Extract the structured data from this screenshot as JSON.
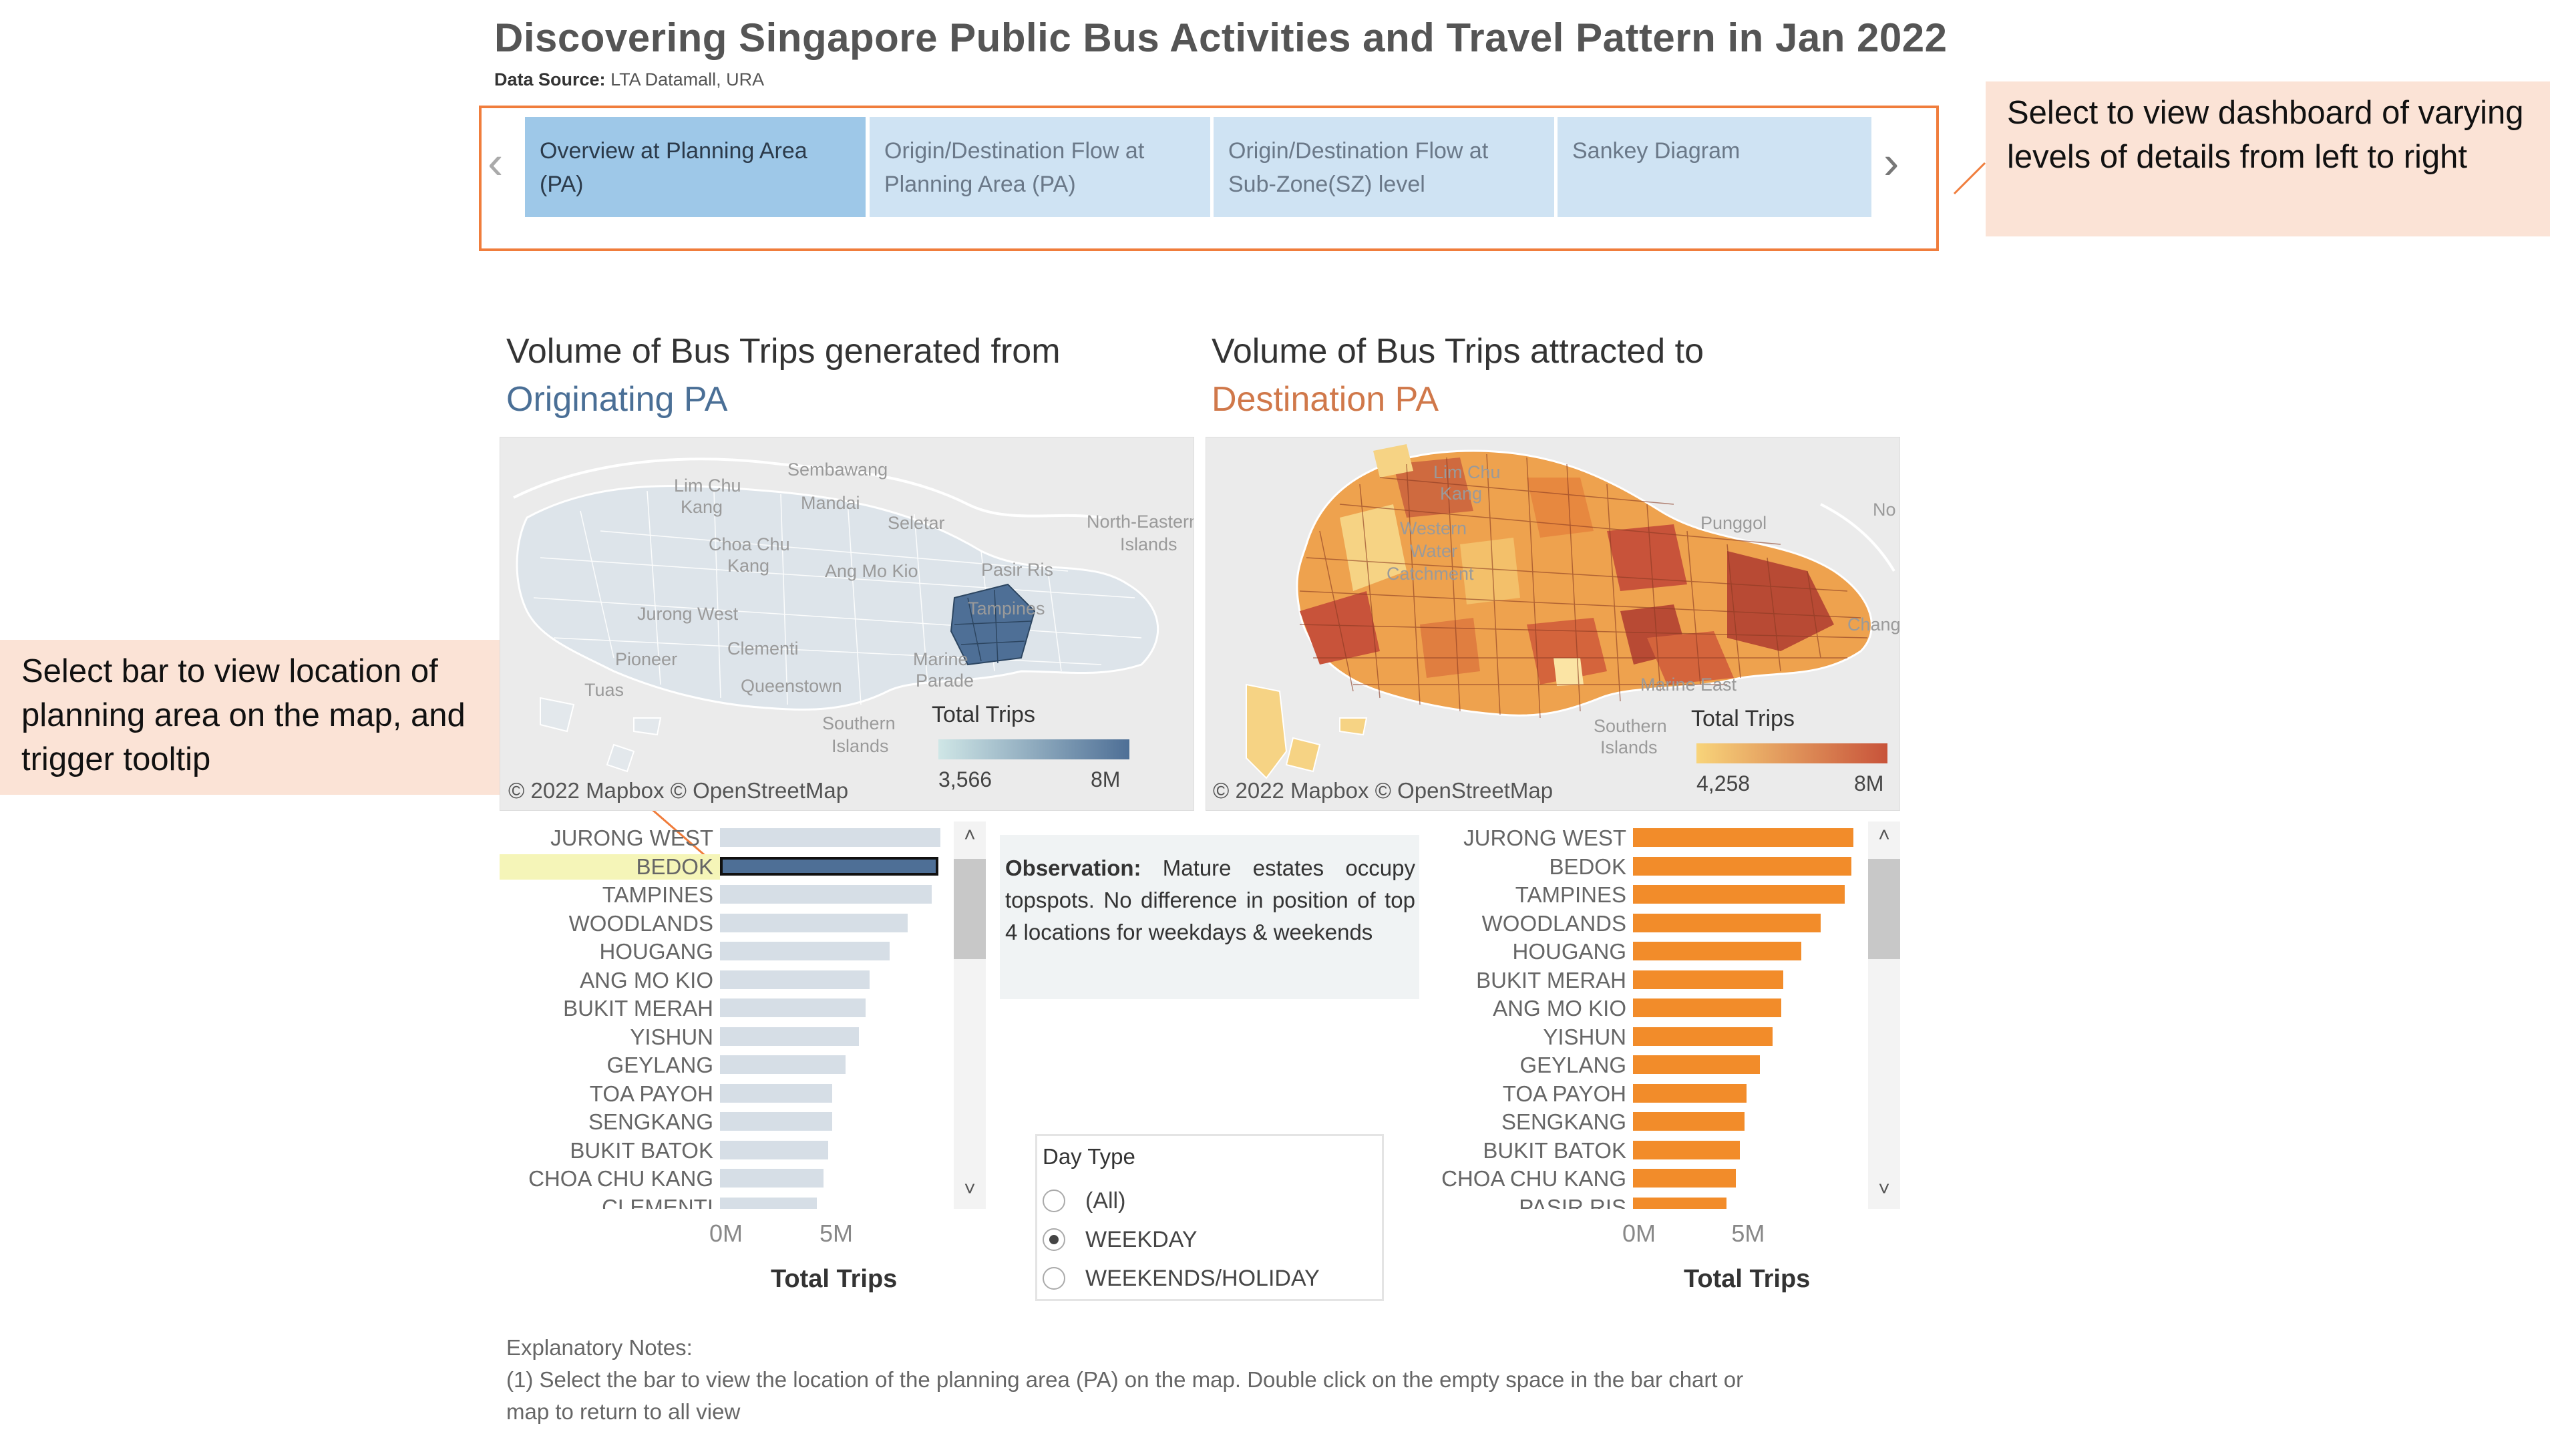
{
  "header": {
    "title": "Discovering Singapore Public Bus Activities and Travel Pattern in Jan 2022",
    "source_label": "Data Source:",
    "source_value": " LTA Datamall, URA"
  },
  "nav": {
    "tabs": [
      {
        "line1": "Overview  at Planning Area",
        "line2": "(PA)"
      },
      {
        "line1": "Origin/Destination Flow at",
        "line2": "Planning Area (PA)"
      },
      {
        "line1": "Origin/Destination Flow at",
        "line2": "Sub-Zone(SZ) level"
      },
      {
        "line1": "Sankey Diagram",
        "line2": ""
      }
    ],
    "prev_icon": "chevron-left-icon",
    "next_icon": "chevron-right-icon"
  },
  "callouts": {
    "nav_note": "Select to view dashboard of varying levels of details from left to right",
    "bar_note": "Select bar to view location of planning area on the map, and trigger tooltip"
  },
  "left_panel": {
    "title_line1": "Volume of Bus Trips generated from",
    "title_line2": "Originating PA",
    "legend_title": "Total Trips",
    "legend_min": "3,566",
    "legend_max": "8M",
    "credit": "© 2022 Mapbox © OpenStreetMap",
    "colors": {
      "low": "#cfe6e6",
      "high": "#4e6f96",
      "bar": "#d6dee6",
      "selected": "#4e6f96",
      "highlight": "#f5f5b8"
    },
    "map_labels": [
      "Sembawang",
      "Lim Chu",
      "Kang",
      "Mandai",
      "Seletar",
      "North-Eastern",
      "Islands",
      "Choa Chu",
      "Kang",
      "Ang Mo Kio",
      "Pasir Ris",
      "Jurong West",
      "Tampines",
      "Pioneer",
      "Clementi",
      "Marine",
      "Parade",
      "Tuas",
      "Queenstown",
      "Southern",
      "Islands"
    ]
  },
  "right_panel": {
    "title_line1": "Volume of Bus Trips attracted to",
    "title_line2": "Destination PA",
    "legend_title": "Total Trips",
    "legend_min": "4,258",
    "legend_max": "8M",
    "credit": "© 2022 Mapbox © OpenStreetMap",
    "colors": {
      "low": "#f8d47a",
      "high": "#c8533a",
      "bar": "#f28c2a"
    },
    "map_labels": [
      "Lim Chu",
      "Kang",
      "Western",
      "Water",
      "Catchment",
      "Punggol",
      "No",
      "Changi",
      "Marine East",
      "Southern",
      "Islands"
    ]
  },
  "observation": {
    "label": "Observation:",
    "text": " Mature estates occupy topspots. No difference in position of top 4 locations for weekdays & weekends"
  },
  "day_type": {
    "title": "Day Type",
    "options": [
      "(All)",
      "WEEKDAY",
      "WEEKENDS/HOLIDAY"
    ],
    "selected": "WEEKDAY"
  },
  "notes": {
    "title": "Explanatory Notes:",
    "line1": "(1) Select the bar to view the location of the planning area (PA)  on  the map. Double click on the empty space in the bar chart or",
    "line2": "map to return to all view"
  },
  "chart_data": [
    {
      "type": "bar",
      "orientation": "horizontal",
      "xlabel": "Total Trips",
      "ticks": [
        "0M",
        "5M"
      ],
      "selected": "BEDOK",
      "categories": [
        "JURONG WEST",
        "BEDOK",
        "TAMPINES",
        "WOODLANDS",
        "HOUGANG",
        "ANG MO KIO",
        "BUKIT MERAH",
        "YISHUN",
        "GEYLANG",
        "TOA PAYOH",
        "SENGKANG",
        "BUKIT BATOK",
        "CHOA CHU KANG",
        "CLEMENTI"
      ],
      "values": [
        10.0,
        9.9,
        9.6,
        8.5,
        7.7,
        6.8,
        6.6,
        6.3,
        5.7,
        5.1,
        5.1,
        4.9,
        4.7,
        4.4
      ]
    },
    {
      "type": "bar",
      "orientation": "horizontal",
      "xlabel": "Total Trips",
      "ticks": [
        "0M",
        "5M"
      ],
      "categories": [
        "JURONG WEST",
        "BEDOK",
        "TAMPINES",
        "WOODLANDS",
        "HOUGANG",
        "BUKIT MERAH",
        "ANG MO KIO",
        "YISHUN",
        "GEYLANG",
        "TOA PAYOH",
        "SENGKANG",
        "BUKIT BATOK",
        "CHOA CHU KANG",
        "PASIR RIS"
      ],
      "values": [
        10.1,
        10.0,
        9.7,
        8.6,
        7.7,
        6.9,
        6.8,
        6.4,
        5.8,
        5.2,
        5.1,
        4.9,
        4.7,
        4.3
      ]
    }
  ]
}
